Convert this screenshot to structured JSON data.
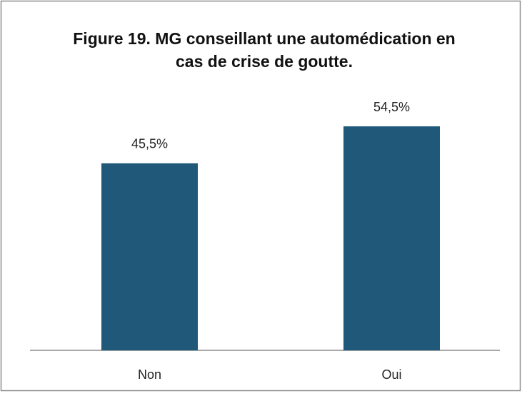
{
  "chart_data": {
    "type": "bar",
    "title": "Figure 19. MG conseillant une automédication en cas de crise de goutte.",
    "categories": [
      "Non",
      "Oui"
    ],
    "values": [
      45.5,
      54.5
    ],
    "value_labels": [
      "45,5%",
      "54,5%"
    ],
    "color": "#1f5878"
  }
}
